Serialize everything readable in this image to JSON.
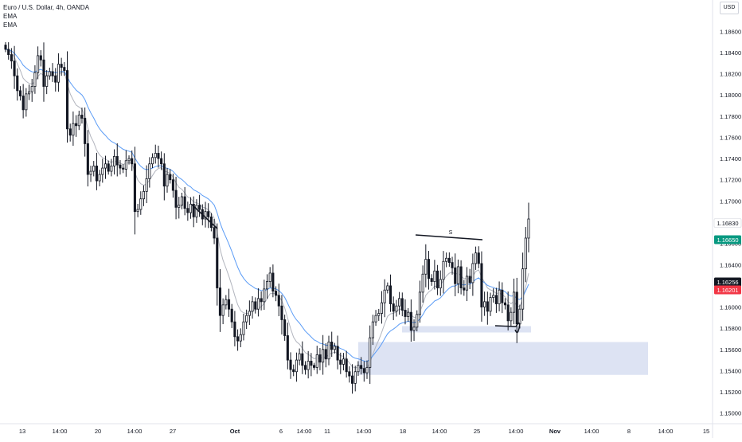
{
  "legend": {
    "title": "Euro / U.S. Dollar, 4h, OANDA",
    "indicator1": "EMA",
    "indicator2": "EMA"
  },
  "price_axis": {
    "currency": "USD"
  },
  "colors": {
    "up": "#ffffff",
    "down": "#131722",
    "wick": "#131722",
    "ema_fast": "#b2b5be",
    "ema_slow": "#5b9cf6",
    "zone_fill": "#dde3f3",
    "tag_top": "#ffffff",
    "tag_green": "#089981",
    "tag_dark": "#131722",
    "tag_red": "#f23645"
  },
  "chart_data": {
    "type": "candlestick",
    "ylim": [
      1.149,
      1.1885
    ],
    "y_ticks": [
      "1.18600",
      "1.18400",
      "1.18200",
      "1.18000",
      "1.17800",
      "1.17600",
      "1.17400",
      "1.17200",
      "1.17000",
      "1.16800",
      "1.16600",
      "1.16400",
      "1.16200",
      "1.16000",
      "1.15800",
      "1.15600",
      "1.15400",
      "1.15200",
      "1.15000"
    ],
    "x_ticks": [
      "13",
      "14:00",
      "20",
      "14:00",
      "27",
      "Oct",
      "6",
      "14:00",
      "11",
      "14:00",
      "18",
      "14:00",
      "25",
      "14:00",
      "Nov",
      "14:00",
      "8",
      "14:00",
      "15"
    ],
    "price_tags": [
      {
        "label": "1.16830",
        "value": 1.1683,
        "style": "top"
      },
      {
        "label": "1.16650",
        "value": 1.1665,
        "style": "green"
      },
      {
        "label": "1.16256",
        "value": 1.16256,
        "style": "dark"
      },
      {
        "label": "1.16201",
        "value": 1.16201,
        "style": "red"
      }
    ],
    "annotations": {
      "top_line_label": "S",
      "zones": [
        {
          "from": 1.1576,
          "to": 1.1582
        },
        {
          "from": 1.1536,
          "to": 1.1567
        }
      ]
    },
    "closes": [
      1.1843,
      1.1838,
      1.1832,
      1.1818,
      1.1804,
      1.1799,
      1.1786,
      1.1801,
      1.1803,
      1.1808,
      1.1821,
      1.1837,
      1.1833,
      1.1808,
      1.1818,
      1.1822,
      1.1818,
      1.1812,
      1.1829,
      1.1826,
      1.1823,
      1.1768,
      1.1762,
      1.1773,
      1.1771,
      1.1781,
      1.1778,
      1.1754,
      1.1725,
      1.1728,
      1.1733,
      1.1719,
      1.1725,
      1.1731,
      1.1735,
      1.1728,
      1.1733,
      1.1742,
      1.1734,
      1.1731,
      1.173,
      1.1738,
      1.174,
      1.1735,
      1.169,
      1.1692,
      1.1702,
      1.1709,
      1.1721,
      1.1735,
      1.1741,
      1.1745,
      1.174,
      1.1735,
      1.1714,
      1.1725,
      1.172,
      1.171,
      1.1694,
      1.1696,
      1.1704,
      1.1693,
      1.1689,
      1.1697,
      1.1685,
      1.1696,
      1.1692,
      1.1683,
      1.169,
      1.1685,
      1.1675,
      1.1665,
      1.1618,
      1.1592,
      1.1602,
      1.1607,
      1.1598,
      1.1586,
      1.1572,
      1.1568,
      1.1574,
      1.1586,
      1.1592,
      1.1596,
      1.1605,
      1.1598,
      1.1608,
      1.1605,
      1.1617,
      1.1624,
      1.1632,
      1.1615,
      1.1611,
      1.1601,
      1.1588,
      1.1573,
      1.155,
      1.1541,
      1.1539,
      1.155,
      1.1556,
      1.1545,
      1.1541,
      1.1549,
      1.1545,
      1.1543,
      1.1555,
      1.1548,
      1.156,
      1.1551,
      1.1567,
      1.156,
      1.1563,
      1.155,
      1.1546,
      1.1551,
      1.1539,
      1.1535,
      1.1528,
      1.1539,
      1.1545,
      1.1542,
      1.1538,
      1.1543,
      1.1571,
      1.1586,
      1.1592,
      1.1594,
      1.1604,
      1.1616,
      1.162,
      1.1603,
      1.1596,
      1.1601,
      1.1608,
      1.1597,
      1.1591,
      1.1595,
      1.1578,
      1.1581,
      1.1593,
      1.1614,
      1.1631,
      1.1645,
      1.1627,
      1.1624,
      1.1634,
      1.1618,
      1.1626,
      1.1643,
      1.1646,
      1.1642,
      1.1637,
      1.1622,
      1.1638,
      1.1618,
      1.1616,
      1.1629,
      1.1623,
      1.1641,
      1.1651,
      1.1641,
      1.16,
      1.1605,
      1.1596,
      1.1609,
      1.1611,
      1.1603,
      1.1616,
      1.1604,
      1.1602,
      1.1587,
      1.1595,
      1.1614,
      1.1584,
      1.1598,
      1.1636,
      1.1665,
      1.1683
    ]
  }
}
